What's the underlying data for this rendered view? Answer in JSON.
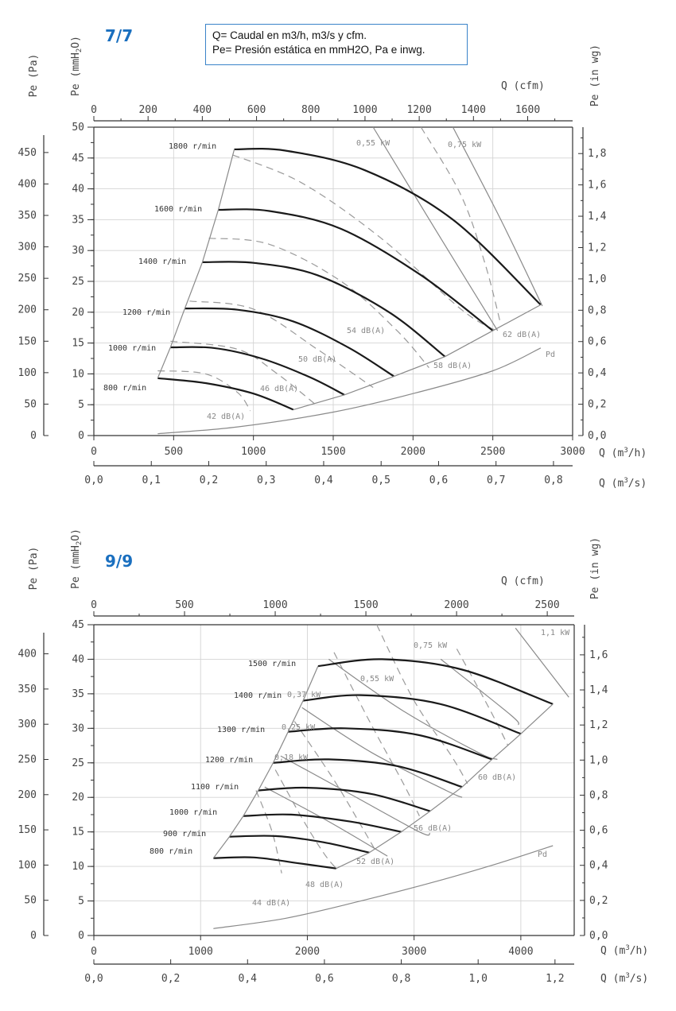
{
  "legend": {
    "line1": "Q= Caudal en m3/h, m3/s y cfm.",
    "line2": "Pe= Presión estática en mmH2O, Pa e inwg."
  },
  "axis_labels": {
    "pe_pa": "Pe (Pa)",
    "pe_mm_prefix": "Pe (mmH",
    "pe_mm_sub": "2",
    "pe_mm_suffix": "O)",
    "pe_inwg": "Pe (in wg)",
    "q_cfm": "Q (cfm)",
    "q_m3h_prefix": "Q (m",
    "q_m3h_sup": "3",
    "q_m3h_suffix": "/h)",
    "q_m3s_prefix": "Q (m",
    "q_m3s_sup": "3",
    "q_m3s_suffix": "/s)"
  },
  "chart_data": [
    {
      "type": "line",
      "title": "7/7",
      "x_unit": "m3/h",
      "y_unit": "mmH2O",
      "xlim": [
        0,
        3000
      ],
      "ylim": [
        0,
        50
      ],
      "grid": true,
      "x_ticks": [
        "0",
        "500",
        "1000",
        "1500",
        "2000",
        "2500",
        "3000"
      ],
      "y_ticks_mm": [
        "0",
        "5",
        "10",
        "15",
        "20",
        "25",
        "30",
        "35",
        "40",
        "45",
        "50"
      ],
      "y_ticks_pa": [
        "0",
        "50",
        "100",
        "150",
        "200",
        "250",
        "300",
        "350",
        "400",
        "450"
      ],
      "y_ticks_inwg": [
        "0,0",
        "0,2",
        "0,4",
        "0,6",
        "0,8",
        "1,0",
        "1,2",
        "1,4",
        "1,6",
        "1,8"
      ],
      "cfm_ticks": [
        "0",
        "200",
        "400",
        "600",
        "800",
        "1000",
        "1200",
        "1400",
        "1600"
      ],
      "m3s_ticks": [
        "0,0",
        "0,1",
        "0,2",
        "0,3",
        "0,4",
        "0,5",
        "0,6",
        "0,7",
        "0,8"
      ],
      "series": [
        {
          "name": "800 r/min",
          "x": [
            400,
            700,
            1000,
            1250
          ],
          "y": [
            9.3,
            8.5,
            6.8,
            4.2
          ]
        },
        {
          "name": "1000 r/min",
          "x": [
            480,
            750,
            1050,
            1350,
            1570
          ],
          "y": [
            14.3,
            14.2,
            12.5,
            9.5,
            6.6
          ]
        },
        {
          "name": "1200 r/min",
          "x": [
            570,
            900,
            1250,
            1600,
            1880
          ],
          "y": [
            20.6,
            20.4,
            18.5,
            14.2,
            9.6
          ]
        },
        {
          "name": "1400 r/min",
          "x": [
            680,
            1000,
            1400,
            1850,
            2200
          ],
          "y": [
            28.1,
            28.0,
            26.0,
            20.0,
            12.8
          ]
        },
        {
          "name": "1600 r/min",
          "x": [
            780,
            1100,
            1550,
            2050,
            2500
          ],
          "y": [
            36.6,
            36.4,
            33.5,
            26.0,
            17.0
          ]
        },
        {
          "name": "1800 r/min",
          "x": [
            880,
            1200,
            1700,
            2250,
            2800
          ],
          "y": [
            46.4,
            46.2,
            43.0,
            35.0,
            21.2
          ]
        },
        {
          "name": "Pd",
          "x": [
            400,
            900,
            1500,
            2000,
            2500,
            2800
          ],
          "y": [
            0.3,
            1.4,
            3.8,
            6.8,
            10.5,
            14.2
          ]
        }
      ],
      "noise_curves": [
        {
          "label": "42 dB(A)",
          "x": [
            400,
            700,
            900,
            980
          ],
          "y": [
            10.5,
            10.0,
            7.0,
            4.0
          ]
        },
        {
          "label": "46 dB(A)",
          "x": [
            480,
            900,
            1150,
            1400
          ],
          "y": [
            15.3,
            14.0,
            10.0,
            4.8
          ]
        },
        {
          "label": "50 dB(A)",
          "x": [
            600,
            1000,
            1400,
            1750
          ],
          "y": [
            21.8,
            20.5,
            14.0,
            7.8
          ]
        },
        {
          "label": "54 dB(A)",
          "x": [
            720,
            1100,
            1550,
            1900,
            2100
          ],
          "y": [
            32.0,
            31.0,
            25.0,
            17.0,
            11.0
          ]
        },
        {
          "label": "58 dB(A)",
          "x": [
            870,
            1300,
            1800,
            2300,
            2520
          ],
          "y": [
            45.5,
            41.0,
            32.0,
            20.5,
            17.0
          ]
        },
        {
          "label": "62 dB(A)",
          "x": [
            2050,
            2300,
            2450,
            2550
          ],
          "y": [
            50.0,
            39.0,
            28.0,
            18.0
          ]
        }
      ],
      "power_curves": [
        {
          "label": "0,55 kW",
          "x": [
            1750,
            2150,
            2530
          ],
          "y": [
            50.0,
            33.0,
            17.0
          ]
        },
        {
          "label": "0,75 kW",
          "x": [
            2250,
            2550,
            2810
          ],
          "y": [
            50.0,
            35.0,
            21.0
          ]
        }
      ],
      "labels": {
        "rpm": [
          "800 r/min",
          "1000 r/min",
          "1200 r/min",
          "1400 r/min",
          "1600 r/min",
          "1800 r/min"
        ],
        "db": [
          "42 dB(A)",
          "46 dB(A)",
          "50 dB(A)",
          "54 dB(A)",
          "58 dB(A)",
          "62 dB(A)"
        ],
        "kw": [
          "0,55 kW",
          "0,75 kW"
        ],
        "pd": "Pd"
      }
    },
    {
      "type": "line",
      "title": "9/9",
      "x_unit": "m3/h",
      "y_unit": "mmH2O",
      "xlim": [
        0,
        4500
      ],
      "ylim": [
        0,
        45
      ],
      "grid": true,
      "x_ticks": [
        "0",
        "1000",
        "2000",
        "3000",
        "4000"
      ],
      "y_ticks_mm": [
        "0",
        "5",
        "10",
        "15",
        "20",
        "25",
        "30",
        "35",
        "40",
        "45"
      ],
      "y_ticks_pa": [
        "0",
        "50",
        "100",
        "150",
        "200",
        "250",
        "300",
        "350",
        "400"
      ],
      "y_ticks_inwg": [
        "0,0",
        "0,2",
        "0,4",
        "0,6",
        "0,8",
        "1,0",
        "1,2",
        "1,4",
        "1,6"
      ],
      "cfm_ticks": [
        "0",
        "500",
        "1000",
        "1500",
        "2000",
        "2500"
      ],
      "m3s_ticks": [
        "0,0",
        "0,2",
        "0,4",
        "0,6",
        "0,8",
        "1,0",
        "1,2"
      ],
      "series": [
        {
          "name": "800 r/min",
          "x": [
            1120,
            1500,
            1900,
            2270
          ],
          "y": [
            11.2,
            11.3,
            10.5,
            9.7
          ]
        },
        {
          "name": "900 r/min",
          "x": [
            1270,
            1700,
            2150,
            2580
          ],
          "y": [
            14.3,
            14.4,
            13.5,
            12.0
          ]
        },
        {
          "name": "1000 r/min",
          "x": [
            1400,
            1850,
            2400,
            2880
          ],
          "y": [
            17.3,
            17.5,
            16.5,
            15.0
          ]
        },
        {
          "name": "1100 r/min",
          "x": [
            1540,
            2000,
            2600,
            3150
          ],
          "y": [
            21.0,
            21.4,
            20.5,
            18.0
          ]
        },
        {
          "name": "1200 r/min",
          "x": [
            1680,
            2200,
            2850,
            3450
          ],
          "y": [
            25.0,
            25.5,
            24.5,
            21.5
          ]
        },
        {
          "name": "1300 r/min",
          "x": [
            1820,
            2350,
            3050,
            3730
          ],
          "y": [
            29.5,
            30.0,
            29.0,
            25.5
          ]
        },
        {
          "name": "1400 r/min",
          "x": [
            1960,
            2500,
            3250,
            4000
          ],
          "y": [
            34.0,
            34.8,
            33.5,
            29.2
          ]
        },
        {
          "name": "1500 r/min",
          "x": [
            2100,
            2700,
            3450,
            4300
          ],
          "y": [
            39.0,
            40.0,
            38.5,
            33.5
          ]
        },
        {
          "name": "Pd",
          "x": [
            1120,
            1800,
            2500,
            3200,
            3800,
            4300
          ],
          "y": [
            1.0,
            2.5,
            5.0,
            7.8,
            10.5,
            13.0
          ]
        }
      ],
      "noise_curves": [
        {
          "label": "44 dB(A)",
          "x": [
            1520,
            1670,
            1760
          ],
          "y": [
            21.0,
            15.0,
            9.0
          ]
        },
        {
          "label": "48 dB(A)",
          "x": [
            1700,
            1950,
            2150,
            2270
          ],
          "y": [
            24.0,
            17.0,
            12.0,
            9.7
          ]
        },
        {
          "label": "52 dB(A)",
          "x": [
            1880,
            2250,
            2500,
            2650
          ],
          "y": [
            31.0,
            22.5,
            16.0,
            12.0
          ]
        },
        {
          "label": "56 dB(A)",
          "x": [
            2250,
            2600,
            2900,
            3050
          ],
          "y": [
            41.0,
            30.5,
            22.0,
            17.3
          ]
        },
        {
          "label": "60 dB(A)",
          "x": [
            2650,
            3000,
            3350,
            3500
          ],
          "y": [
            45.0,
            34.0,
            26.0,
            22.0
          ]
        },
        {
          "label": "",
          "x": [
            3400,
            3700,
            3880
          ],
          "y": [
            41.5,
            33.0,
            27.5
          ]
        }
      ],
      "power_curves": [
        {
          "label": "0,18 kW",
          "x": [
            1600,
            2200,
            2750
          ],
          "y": [
            21.5,
            16.5,
            11.5
          ]
        },
        {
          "label": "0,25 kW",
          "x": [
            1750,
            2400,
            3050,
            3150
          ],
          "y": [
            26.0,
            20.5,
            15.0,
            14.8
          ]
        },
        {
          "label": "0,37 kW",
          "x": [
            1950,
            2600,
            3300,
            3450
          ],
          "y": [
            33.0,
            26.5,
            21.0,
            20.0
          ]
        },
        {
          "label": "0,55 kW",
          "x": [
            2200,
            2900,
            3600,
            3780
          ],
          "y": [
            40.0,
            32.5,
            26.5,
            25.5
          ]
        },
        {
          "label": "0,75 kW",
          "x": [
            3250,
            3900,
            3980
          ],
          "y": [
            40.0,
            32.0,
            30.5
          ]
        },
        {
          "label": "1,1 kW",
          "x": [
            3950,
            4450
          ],
          "y": [
            44.5,
            34.5
          ]
        }
      ],
      "labels": {
        "rpm": [
          "800 r/min",
          "900 r/min",
          "1000 r/min",
          "1100 r/min",
          "1200 r/min",
          "1300 r/min",
          "1400 r/min",
          "1500 r/min"
        ],
        "db": [
          "44 dB(A)",
          "48 dB(A)",
          "52 dB(A)",
          "56 dB(A)",
          "60 dB(A)"
        ],
        "kw": [
          "0,18 kW",
          "0,25 kW",
          "0,37 kW",
          "0,55 kW",
          "0,75 kW",
          "1,1 kW"
        ],
        "pd": "Pd"
      }
    }
  ]
}
